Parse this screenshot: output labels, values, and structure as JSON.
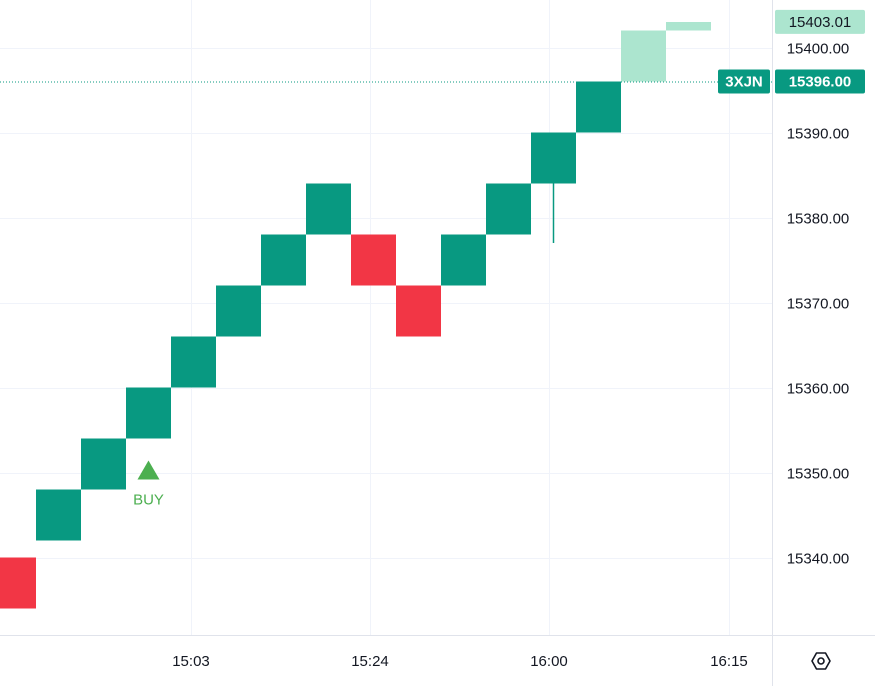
{
  "chart_data": {
    "type": "renko",
    "y_axis": {
      "min": 15330.5,
      "max": 15406,
      "ticks": [
        15340.0,
        15350.0,
        15360.0,
        15370.0,
        15380.0,
        15390.0,
        15400.0
      ],
      "tick_labels": [
        "15340.00",
        "15350.00",
        "15360.00",
        "15370.00",
        "15380.00",
        "15390.00",
        "15400.00"
      ],
      "position": "right"
    },
    "x_axis": {
      "tick_labels": [
        "15:03",
        "15:24",
        "16:00",
        "16:15"
      ]
    },
    "grid": true,
    "colors": {
      "up": "#089981",
      "down": "#f23645",
      "projected_up": "#ace5cf",
      "buy_signal": "#4caf50",
      "price_line": "#089981",
      "grid": "#f0f3fa",
      "axis_text": "#131722"
    },
    "bricks": [
      {
        "dir": "down",
        "open": 15340,
        "close": 15334
      },
      {
        "dir": "up",
        "open": 15342,
        "close": 15348
      },
      {
        "dir": "up",
        "open": 15348,
        "close": 15354
      },
      {
        "dir": "up",
        "open": 15354,
        "close": 15360
      },
      {
        "dir": "up",
        "open": 15360,
        "close": 15366
      },
      {
        "dir": "up",
        "open": 15366,
        "close": 15372
      },
      {
        "dir": "up",
        "open": 15372,
        "close": 15378
      },
      {
        "dir": "up",
        "open": 15378,
        "close": 15384
      },
      {
        "dir": "down",
        "open": 15378,
        "close": 15372
      },
      {
        "dir": "down",
        "open": 15372,
        "close": 15366
      },
      {
        "dir": "up",
        "open": 15372,
        "close": 15378
      },
      {
        "dir": "up",
        "open": 15378,
        "close": 15384
      },
      {
        "dir": "up",
        "open": 15384,
        "close": 15390,
        "wick_low": 15377
      },
      {
        "dir": "up",
        "open": 15390,
        "close": 15396
      },
      {
        "dir": "up",
        "open": 15396,
        "close": 15402,
        "projected": true
      }
    ],
    "projected_bar": {
      "low": 15402,
      "high": 15403
    },
    "signals": [
      {
        "type": "buy",
        "label": "BUY",
        "price": 15350
      }
    ],
    "price_labels": [
      {
        "kind": "projected",
        "value": "15403.01",
        "price": 15403.01
      },
      {
        "kind": "last",
        "symbol": "3XJN",
        "value": "15396.00",
        "price": 15396.0
      }
    ]
  },
  "toolbar": {
    "settings_icon": "gear-hexagon-icon"
  }
}
